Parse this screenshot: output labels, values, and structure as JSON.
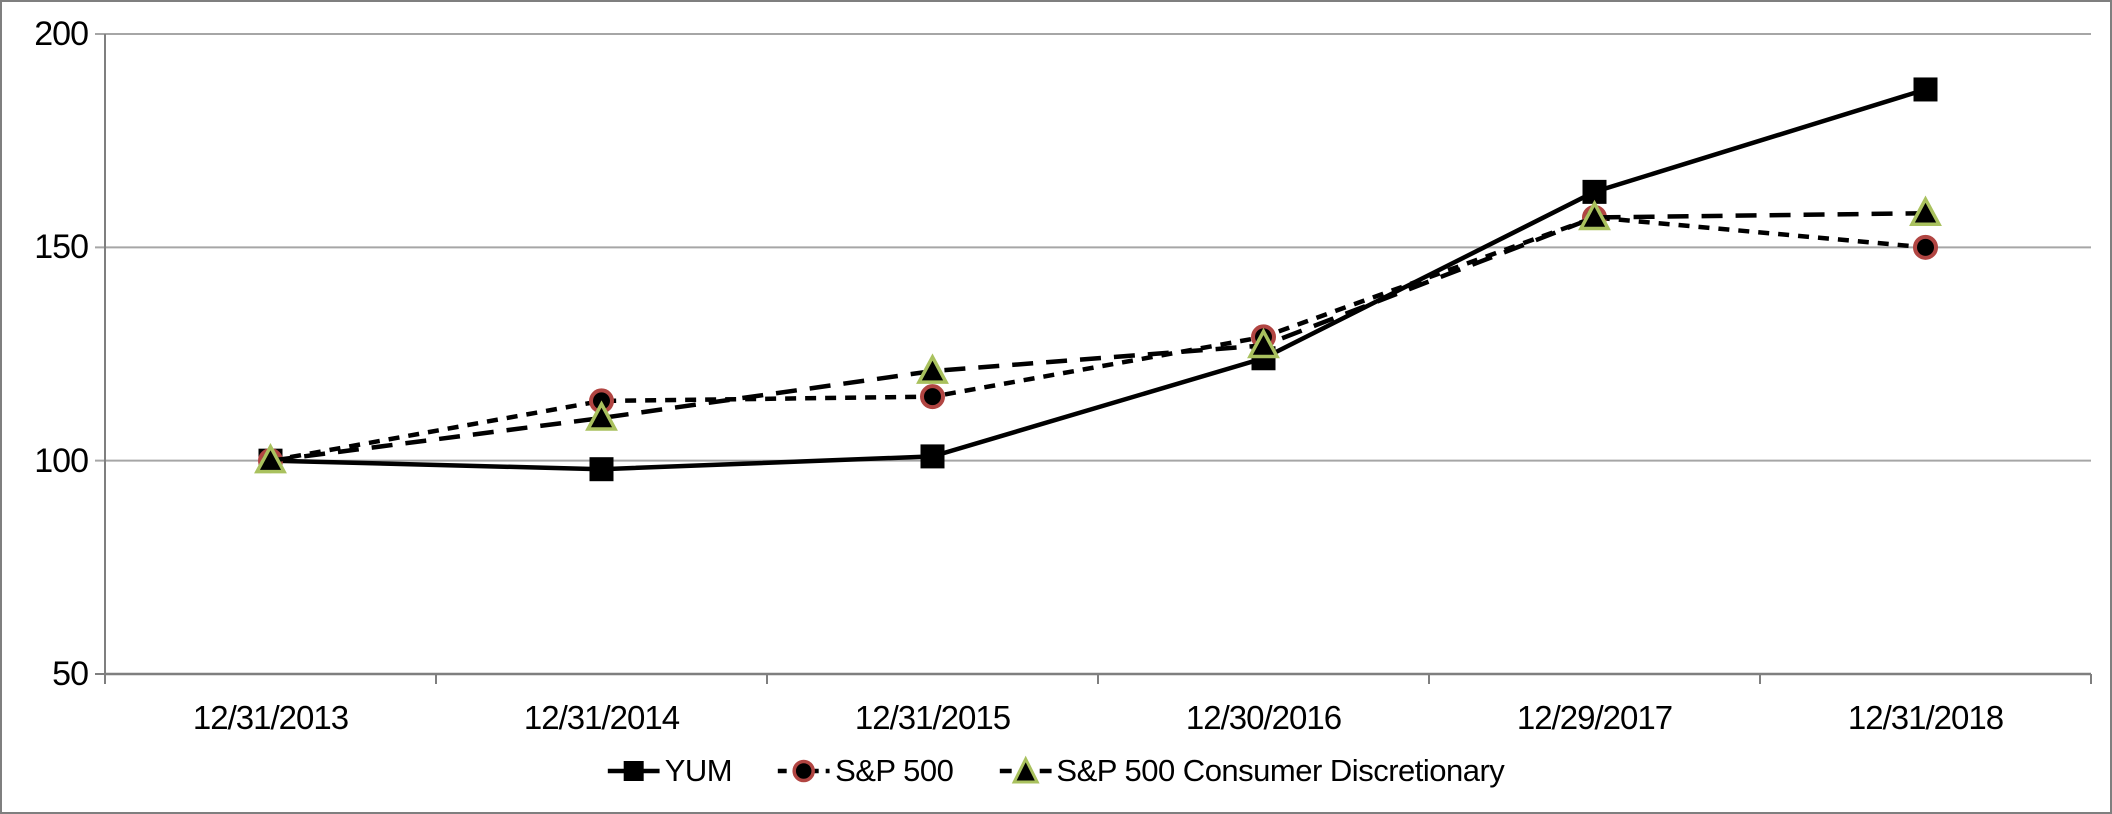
{
  "chart_data": {
    "type": "line",
    "title": "",
    "categories": [
      "12/31/2013",
      "12/31/2014",
      "12/31/2015",
      "12/30/2016",
      "12/29/2017",
      "12/31/2018"
    ],
    "series": [
      {
        "name": "YUM",
        "values": [
          100,
          98,
          101,
          124,
          163,
          187
        ],
        "line_style": "solid",
        "marker": "square",
        "line_color": "#000000",
        "marker_fill": "#000000",
        "marker_border": "#000000"
      },
      {
        "name": "S&P 500",
        "values": [
          100,
          114,
          115,
          129,
          157,
          150
        ],
        "line_style": "short-dash",
        "marker": "circle",
        "line_color": "#000000",
        "marker_fill": "#000000",
        "marker_border": "#b14542"
      },
      {
        "name": "S&P 500 Consumer Discretionary",
        "values": [
          100,
          110,
          121,
          127,
          157,
          158
        ],
        "line_style": "dash",
        "marker": "triangle",
        "line_color": "#000000",
        "marker_fill": "#000000",
        "marker_border": "#a9c15e"
      }
    ],
    "y_ticks": [
      50,
      100,
      150,
      200
    ],
    "ylim": [
      50,
      200
    ],
    "grid": true,
    "legend_position": "bottom",
    "axis_color": "#7f7f7f",
    "grid_color": "#a6a6a6"
  }
}
